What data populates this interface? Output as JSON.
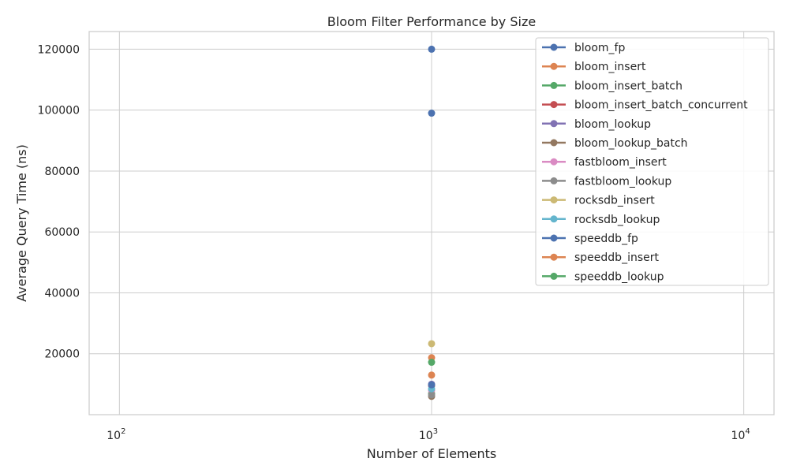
{
  "chart_data": {
    "type": "scatter",
    "title": "Bloom Filter Performance by Size",
    "xlabel": "Number of Elements",
    "ylabel": "Average Query Time (ns)",
    "xscale": "log",
    "xlim": [
      80,
      12500
    ],
    "ylim": [
      0,
      125800
    ],
    "x_ticks": [
      100,
      1000,
      10000
    ],
    "x_tick_labels": [
      [
        "10",
        "2"
      ],
      [
        "10",
        "3"
      ],
      [
        "10",
        "4"
      ]
    ],
    "y_ticks": [
      20000,
      40000,
      60000,
      80000,
      100000,
      120000
    ],
    "y_tick_labels": [
      "20000",
      "40000",
      "60000",
      "80000",
      "100000",
      "120000"
    ],
    "grid": true,
    "legend_position": "top-right",
    "series": [
      {
        "name": "bloom_fp",
        "color": "#4c72b0",
        "x": [
          1000,
          1000
        ],
        "y": [
          120000,
          99000
        ]
      },
      {
        "name": "bloom_insert",
        "color": "#dd8452",
        "x": [
          1000
        ],
        "y": [
          13000
        ]
      },
      {
        "name": "bloom_insert_batch",
        "color": "#55a868",
        "x": [
          1000
        ],
        "y": [
          7000
        ]
      },
      {
        "name": "bloom_insert_batch_concurrent",
        "color": "#c44e52",
        "x": [
          1000
        ],
        "y": [
          9500
        ]
      },
      {
        "name": "bloom_lookup",
        "color": "#8172b3",
        "x": [
          1000
        ],
        "y": [
          10000
        ]
      },
      {
        "name": "bloom_lookup_batch",
        "color": "#937860",
        "x": [
          1000
        ],
        "y": [
          6000
        ]
      },
      {
        "name": "fastbloom_insert",
        "color": "#da8bc3",
        "x": [
          1000
        ],
        "y": [
          8000
        ]
      },
      {
        "name": "fastbloom_lookup",
        "color": "#8c8c8c",
        "x": [
          1000
        ],
        "y": [
          6500
        ]
      },
      {
        "name": "rocksdb_insert",
        "color": "#ccb974",
        "x": [
          1000
        ],
        "y": [
          23300
        ]
      },
      {
        "name": "rocksdb_lookup",
        "color": "#64b5cd",
        "x": [
          1000
        ],
        "y": [
          8500
        ]
      },
      {
        "name": "speeddb_fp",
        "color": "#4c72b0",
        "x": [
          1000
        ],
        "y": [
          9800
        ]
      },
      {
        "name": "speeddb_insert",
        "color": "#dd8452",
        "x": [
          1000
        ],
        "y": [
          18700
        ]
      },
      {
        "name": "speeddb_lookup",
        "color": "#55a868",
        "x": [
          1000
        ],
        "y": [
          17200
        ]
      }
    ]
  }
}
